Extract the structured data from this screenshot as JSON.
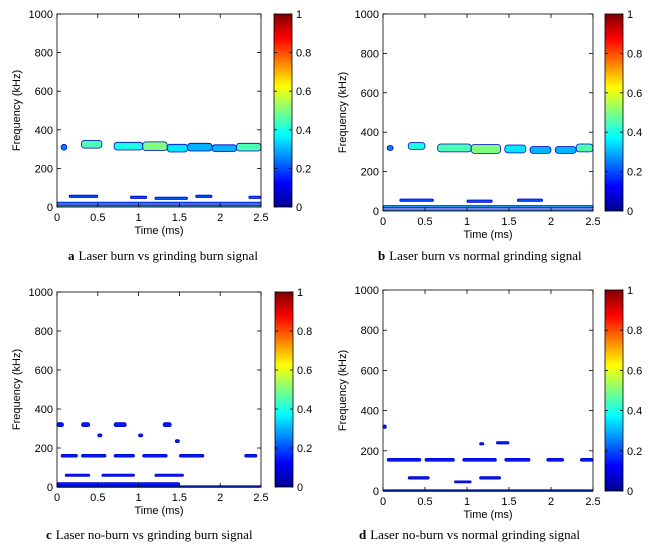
{
  "colorbar": {
    "ticks": [
      "0",
      "0.2",
      "0.4",
      "0.6",
      "0.8",
      "1"
    ],
    "colors": [
      "#00008f",
      "#0000ff",
      "#0080ff",
      "#00ffff",
      "#80ff80",
      "#ffff00",
      "#ff8000",
      "#ff0000",
      "#800000"
    ]
  },
  "chart_data": [
    {
      "id": "a",
      "type": "heatmap",
      "title": "Laser burn vs grinding burn signal",
      "letter": "a",
      "caption": "Laser burn vs grinding burn signal",
      "xlabel": "Time (ms)",
      "ylabel": "Frequency (kHz)",
      "xlim": [
        0,
        2.5
      ],
      "ylim": [
        0,
        1000
      ],
      "xticks": [
        "0",
        "0.5",
        "1",
        "1.5",
        "2",
        "2.5"
      ],
      "yticks": [
        "0",
        "200",
        "400",
        "600",
        "800",
        "1000"
      ],
      "blobs": [
        {
          "t0": 0.05,
          "t1": 0.12,
          "f": 310,
          "h": 30,
          "v": 0.25
        },
        {
          "t0": 0.3,
          "t1": 0.55,
          "f": 325,
          "h": 40,
          "v": 0.45
        },
        {
          "t0": 0.7,
          "t1": 1.05,
          "f": 315,
          "h": 40,
          "v": 0.4
        },
        {
          "t0": 1.05,
          "t1": 1.35,
          "f": 315,
          "h": 45,
          "v": 0.5
        },
        {
          "t0": 1.35,
          "t1": 1.6,
          "f": 305,
          "h": 40,
          "v": 0.35
        },
        {
          "t0": 1.6,
          "t1": 1.9,
          "f": 310,
          "h": 40,
          "v": 0.3
        },
        {
          "t0": 1.9,
          "t1": 2.2,
          "f": 305,
          "h": 35,
          "v": 0.3
        },
        {
          "t0": 2.2,
          "t1": 2.5,
          "f": 310,
          "h": 40,
          "v": 0.45
        },
        {
          "t0": 0.15,
          "t1": 0.5,
          "f": 55,
          "h": 12,
          "v": 0.2
        },
        {
          "t0": 0.9,
          "t1": 1.1,
          "f": 50,
          "h": 12,
          "v": 0.2
        },
        {
          "t0": 1.2,
          "t1": 1.6,
          "f": 45,
          "h": 12,
          "v": 0.22
        },
        {
          "t0": 1.7,
          "t1": 1.9,
          "f": 55,
          "h": 12,
          "v": 0.2
        },
        {
          "t0": 2.35,
          "t1": 2.5,
          "f": 50,
          "h": 12,
          "v": 0.22
        },
        {
          "t0": 0.0,
          "t1": 2.5,
          "f": 20,
          "h": 10,
          "v": 0.3
        },
        {
          "t0": 0.0,
          "t1": 2.5,
          "f": 5,
          "h": 8,
          "v": 0.45
        }
      ]
    },
    {
      "id": "b",
      "type": "heatmap",
      "title": "Laser burn vs normal grinding signal",
      "letter": "b",
      "caption": "Laser burn vs normal grinding signal",
      "xlabel": "Time (ms)",
      "ylabel": "Frequency (kHz)",
      "xlim": [
        0,
        2.5
      ],
      "ylim": [
        0,
        1000
      ],
      "xticks": [
        "0",
        "0.5",
        "1",
        "1.5",
        "2",
        "2.5"
      ],
      "yticks": [
        "0",
        "200",
        "400",
        "600",
        "800",
        "1000"
      ],
      "blobs": [
        {
          "t0": 0.05,
          "t1": 0.12,
          "f": 320,
          "h": 25,
          "v": 0.25
        },
        {
          "t0": 0.3,
          "t1": 0.5,
          "f": 330,
          "h": 35,
          "v": 0.4
        },
        {
          "t0": 0.65,
          "t1": 1.05,
          "f": 320,
          "h": 40,
          "v": 0.45
        },
        {
          "t0": 1.05,
          "t1": 1.4,
          "f": 315,
          "h": 45,
          "v": 0.5
        },
        {
          "t0": 1.45,
          "t1": 1.7,
          "f": 315,
          "h": 40,
          "v": 0.35
        },
        {
          "t0": 1.75,
          "t1": 2.0,
          "f": 310,
          "h": 35,
          "v": 0.3
        },
        {
          "t0": 2.05,
          "t1": 2.3,
          "f": 310,
          "h": 35,
          "v": 0.3
        },
        {
          "t0": 2.3,
          "t1": 2.5,
          "f": 320,
          "h": 40,
          "v": 0.45
        },
        {
          "t0": 0.2,
          "t1": 0.6,
          "f": 55,
          "h": 12,
          "v": 0.2
        },
        {
          "t0": 1.0,
          "t1": 1.3,
          "f": 50,
          "h": 12,
          "v": 0.2
        },
        {
          "t0": 1.6,
          "t1": 1.9,
          "f": 55,
          "h": 12,
          "v": 0.2
        },
        {
          "t0": 0.0,
          "t1": 2.5,
          "f": 22,
          "h": 10,
          "v": 0.3
        },
        {
          "t0": 0.0,
          "t1": 2.5,
          "f": 6,
          "h": 8,
          "v": 0.45
        }
      ]
    },
    {
      "id": "c",
      "type": "heatmap",
      "title": "Laser no-burn vs grinding burn signal",
      "letter": "c",
      "caption": "Laser no-burn vs grinding burn signal",
      "xlabel": "Time (ms)",
      "ylabel": "Frequency (kHz)",
      "xlim": [
        0,
        2.5
      ],
      "ylim": [
        0,
        1000
      ],
      "xticks": [
        "0",
        "0.5",
        "1",
        "1.5",
        "2",
        "2.5"
      ],
      "yticks": [
        "0",
        "200",
        "400",
        "600",
        "800",
        "1000"
      ],
      "blobs": [
        {
          "t0": 0.0,
          "t1": 0.08,
          "f": 320,
          "h": 20,
          "v": 0.15
        },
        {
          "t0": 0.3,
          "t1": 0.4,
          "f": 320,
          "h": 20,
          "v": 0.15
        },
        {
          "t0": 0.7,
          "t1": 0.85,
          "f": 320,
          "h": 20,
          "v": 0.15
        },
        {
          "t0": 1.3,
          "t1": 1.4,
          "f": 320,
          "h": 20,
          "v": 0.15
        },
        {
          "t0": 0.5,
          "t1": 0.55,
          "f": 265,
          "h": 15,
          "v": 0.15
        },
        {
          "t0": 1.0,
          "t1": 1.05,
          "f": 265,
          "h": 15,
          "v": 0.15
        },
        {
          "t0": 1.45,
          "t1": 1.5,
          "f": 235,
          "h": 15,
          "v": 0.15
        },
        {
          "t0": 0.05,
          "t1": 0.25,
          "f": 160,
          "h": 14,
          "v": 0.15
        },
        {
          "t0": 0.3,
          "t1": 0.6,
          "f": 160,
          "h": 14,
          "v": 0.15
        },
        {
          "t0": 0.7,
          "t1": 0.95,
          "f": 160,
          "h": 14,
          "v": 0.15
        },
        {
          "t0": 1.05,
          "t1": 1.35,
          "f": 160,
          "h": 14,
          "v": 0.15
        },
        {
          "t0": 1.5,
          "t1": 1.8,
          "f": 160,
          "h": 14,
          "v": 0.15
        },
        {
          "t0": 2.3,
          "t1": 2.45,
          "f": 160,
          "h": 14,
          "v": 0.15
        },
        {
          "t0": 0.1,
          "t1": 0.4,
          "f": 60,
          "h": 12,
          "v": 0.15
        },
        {
          "t0": 0.55,
          "t1": 0.95,
          "f": 60,
          "h": 12,
          "v": 0.15
        },
        {
          "t0": 1.2,
          "t1": 1.55,
          "f": 60,
          "h": 12,
          "v": 0.15
        },
        {
          "t0": 0.0,
          "t1": 1.5,
          "f": 15,
          "h": 14,
          "v": 0.15
        },
        {
          "t0": 0.0,
          "t1": 2.5,
          "f": 3,
          "h": 6,
          "v": 0.2
        }
      ]
    },
    {
      "id": "d",
      "type": "heatmap",
      "title": "Laser no-burn vs normal grinding signal",
      "letter": "d",
      "caption": "Laser no-burn vs normal grinding signal",
      "xlabel": "Time (ms)",
      "ylabel": "Frequency (kHz)",
      "xlim": [
        0,
        2.5
      ],
      "ylim": [
        0,
        1000
      ],
      "xticks": [
        "0",
        "0.5",
        "1",
        "1.5",
        "2",
        "2.5"
      ],
      "yticks": [
        "0",
        "200",
        "400",
        "600",
        "800",
        "1000"
      ],
      "blobs": [
        {
          "t0": 0.0,
          "t1": 0.04,
          "f": 320,
          "h": 18,
          "v": 0.15
        },
        {
          "t0": 1.15,
          "t1": 1.2,
          "f": 235,
          "h": 12,
          "v": 0.15
        },
        {
          "t0": 1.35,
          "t1": 1.5,
          "f": 240,
          "h": 12,
          "v": 0.15
        },
        {
          "t0": 0.05,
          "t1": 0.45,
          "f": 155,
          "h": 14,
          "v": 0.15
        },
        {
          "t0": 0.5,
          "t1": 0.85,
          "f": 155,
          "h": 14,
          "v": 0.15
        },
        {
          "t0": 0.95,
          "t1": 1.35,
          "f": 155,
          "h": 14,
          "v": 0.15
        },
        {
          "t0": 1.45,
          "t1": 1.75,
          "f": 155,
          "h": 14,
          "v": 0.15
        },
        {
          "t0": 1.95,
          "t1": 2.15,
          "f": 155,
          "h": 14,
          "v": 0.15
        },
        {
          "t0": 2.35,
          "t1": 2.5,
          "f": 155,
          "h": 14,
          "v": 0.15
        },
        {
          "t0": 0.3,
          "t1": 0.55,
          "f": 65,
          "h": 12,
          "v": 0.15
        },
        {
          "t0": 1.15,
          "t1": 1.4,
          "f": 65,
          "h": 12,
          "v": 0.15
        },
        {
          "t0": 0.85,
          "t1": 1.05,
          "f": 45,
          "h": 10,
          "v": 0.15
        },
        {
          "t0": 0.0,
          "t1": 2.5,
          "f": 3,
          "h": 6,
          "v": 0.2
        }
      ]
    }
  ]
}
